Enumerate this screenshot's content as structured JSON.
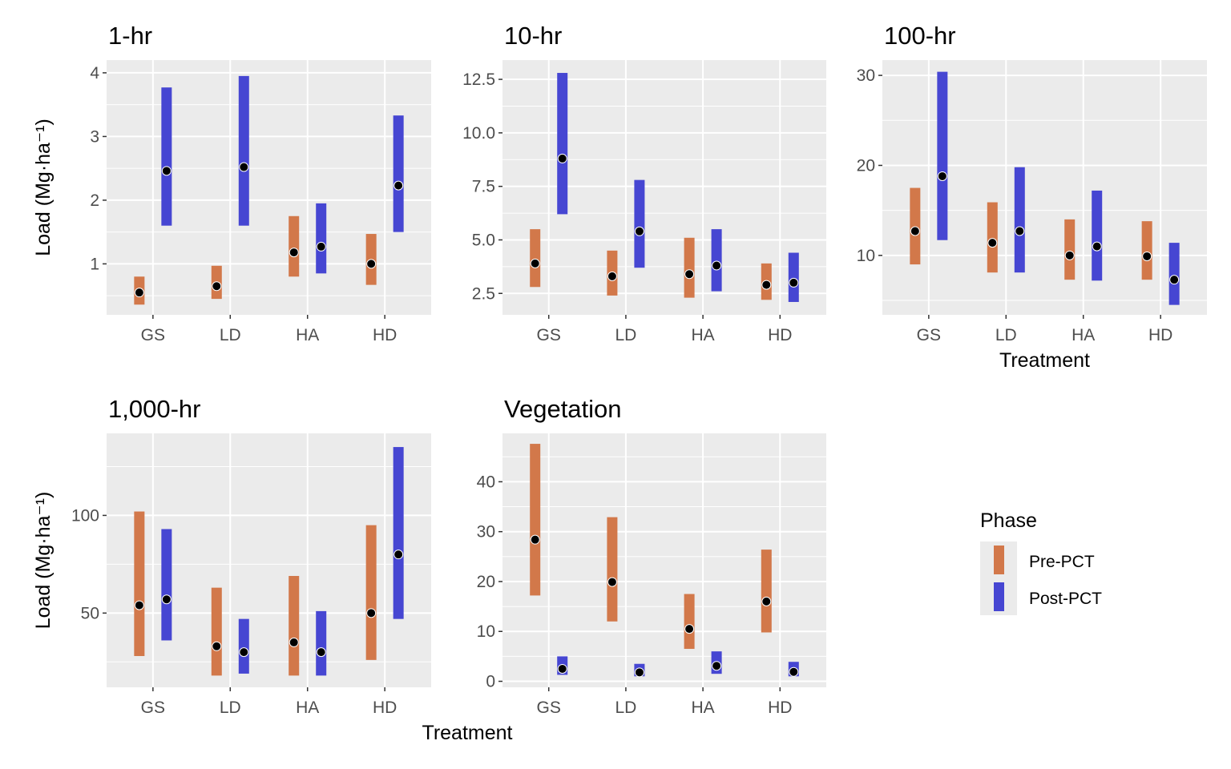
{
  "chart_data": [
    {
      "type": "range",
      "title": "1-hr",
      "categories": [
        "GS",
        "LD",
        "HA",
        "HD"
      ],
      "ylim": [
        0.2,
        4.2
      ],
      "yticks": [
        1,
        2,
        3,
        4
      ],
      "ytick_labels": [
        "1",
        "2",
        "3",
        "4"
      ],
      "ylabel": "Load (Mg·ha⁻¹)",
      "xlabel": "",
      "series": [
        {
          "name": "Pre-PCT",
          "low": [
            0.36,
            0.45,
            0.8,
            0.67
          ],
          "high": [
            0.8,
            0.97,
            1.75,
            1.47
          ],
          "mean": [
            0.55,
            0.65,
            1.18,
            1.0
          ]
        },
        {
          "name": "Post-PCT",
          "low": [
            1.6,
            1.6,
            0.85,
            1.5
          ],
          "high": [
            3.77,
            3.95,
            1.95,
            3.33
          ],
          "mean": [
            2.46,
            2.52,
            1.27,
            2.23
          ]
        }
      ]
    },
    {
      "type": "range",
      "title": "10-hr",
      "categories": [
        "GS",
        "LD",
        "HA",
        "HD"
      ],
      "ylim": [
        1.5,
        13.4
      ],
      "yticks": [
        2.5,
        5.0,
        7.5,
        10.0,
        12.5
      ],
      "ytick_labels": [
        "2.5",
        "5.0",
        "7.5",
        "10.0",
        "12.5"
      ],
      "ylabel": "",
      "xlabel": "",
      "series": [
        {
          "name": "Pre-PCT",
          "low": [
            2.8,
            2.4,
            2.3,
            2.2
          ],
          "high": [
            5.5,
            4.5,
            5.1,
            3.9
          ],
          "mean": [
            3.9,
            3.3,
            3.4,
            2.9
          ]
        },
        {
          "name": "Post-PCT",
          "low": [
            6.2,
            3.7,
            2.6,
            2.1
          ],
          "high": [
            12.8,
            7.8,
            5.5,
            4.4
          ],
          "mean": [
            8.8,
            5.4,
            3.8,
            3.0
          ]
        }
      ]
    },
    {
      "type": "range",
      "title": "100-hr",
      "categories": [
        "GS",
        "LD",
        "HA",
        "HD"
      ],
      "ylim": [
        3.4,
        31.7
      ],
      "yticks": [
        10,
        20,
        30
      ],
      "ytick_labels": [
        "10",
        "20",
        "30"
      ],
      "ylabel": "",
      "xlabel": "Treatment",
      "series": [
        {
          "name": "Pre-PCT",
          "low": [
            9.0,
            8.1,
            7.3,
            7.3
          ],
          "high": [
            17.5,
            15.9,
            14.0,
            13.8
          ],
          "mean": [
            12.7,
            11.4,
            10.0,
            9.9
          ]
        },
        {
          "name": "Post-PCT",
          "low": [
            11.7,
            8.1,
            7.2,
            4.5
          ],
          "high": [
            30.4,
            19.8,
            17.2,
            11.4
          ],
          "mean": [
            18.8,
            12.7,
            11.0,
            7.3
          ]
        }
      ]
    },
    {
      "type": "range",
      "title": "1,000-hr",
      "categories": [
        "GS",
        "LD",
        "HA",
        "HD"
      ],
      "ylim": [
        12,
        142
      ],
      "yticks": [
        50,
        100
      ],
      "ytick_labels": [
        "50",
        "100"
      ],
      "ylabel": "Load (Mg·ha⁻¹)",
      "xlabel": "",
      "series": [
        {
          "name": "Pre-PCT",
          "low": [
            28,
            18,
            18,
            26
          ],
          "high": [
            102,
            63,
            69,
            95
          ],
          "mean": [
            54,
            33,
            35,
            50
          ]
        },
        {
          "name": "Post-PCT",
          "low": [
            36,
            19,
            18,
            47
          ],
          "high": [
            93,
            47,
            51,
            135
          ],
          "mean": [
            57,
            30,
            30,
            80
          ]
        }
      ]
    },
    {
      "type": "range",
      "title": "Vegetation",
      "categories": [
        "GS",
        "LD",
        "HA",
        "HD"
      ],
      "ylim": [
        -1.2,
        49.7
      ],
      "yticks": [
        0,
        10,
        20,
        30,
        40
      ],
      "ytick_labels": [
        "0",
        "10",
        "20",
        "30",
        "40"
      ],
      "ylabel": "",
      "xlabel": "Treatment",
      "series": [
        {
          "name": "Pre-PCT",
          "low": [
            17.2,
            12.0,
            6.5,
            9.8
          ],
          "high": [
            47.6,
            32.9,
            17.5,
            26.4
          ],
          "mean": [
            28.4,
            19.9,
            10.5,
            16.0
          ]
        },
        {
          "name": "Post-PCT",
          "low": [
            1.3,
            1.0,
            1.5,
            1.0
          ],
          "high": [
            5.0,
            3.5,
            6.0,
            3.9
          ],
          "mean": [
            2.5,
            1.8,
            3.1,
            1.9
          ]
        }
      ]
    }
  ],
  "legend": {
    "title": "Phase",
    "items": [
      {
        "label": "Pre-PCT",
        "color": "#D2784A"
      },
      {
        "label": "Post-PCT",
        "color": "#4646D2"
      }
    ]
  },
  "colors": {
    "pre": "#D2784A",
    "post": "#4646D2",
    "panel_bg": "#EBEBEB",
    "grid": "#FFFFFF",
    "point": "#000000"
  }
}
